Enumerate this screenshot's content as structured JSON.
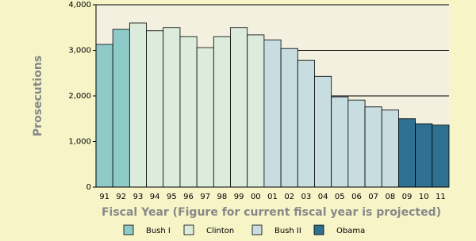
{
  "chart_data": {
    "type": "bar",
    "y_label": "Prosecutions",
    "x_label": "Fiscal Year (Figure for current fiscal year is projected)",
    "categories": [
      "91",
      "92",
      "93",
      "94",
      "95",
      "96",
      "97",
      "98",
      "99",
      "00",
      "01",
      "02",
      "03",
      "04",
      "05",
      "06",
      "07",
      "08",
      "09",
      "10",
      "11"
    ],
    "series": [
      {
        "name": "Bush I",
        "color": "#8ecac8",
        "values": [
          3130,
          3460,
          null,
          null,
          null,
          null,
          null,
          null,
          null,
          null,
          null,
          null,
          null,
          null,
          null,
          null,
          null,
          null,
          null,
          null,
          null
        ]
      },
      {
        "name": "Clinton",
        "color": "#dcecdc",
        "values": [
          null,
          null,
          3600,
          3430,
          3500,
          3300,
          3060,
          3300,
          3500,
          3340,
          null,
          null,
          null,
          null,
          null,
          null,
          null,
          null,
          null,
          null,
          null
        ]
      },
      {
        "name": "Bush II",
        "color": "#c8dde0",
        "values": [
          null,
          null,
          null,
          null,
          null,
          null,
          null,
          null,
          null,
          null,
          3230,
          3040,
          2780,
          2430,
          1980,
          1910,
          1760,
          1690,
          null,
          null,
          null
        ]
      },
      {
        "name": "Obama",
        "color": "#2f6f8f",
        "values": [
          null,
          null,
          null,
          null,
          null,
          null,
          null,
          null,
          null,
          null,
          null,
          null,
          null,
          null,
          null,
          null,
          null,
          null,
          1500,
          1390,
          1360
        ]
      }
    ],
    "ylim": [
      0,
      4000
    ],
    "yticks": [
      0,
      {
        "value": 1000,
        "label": "1,000"
      },
      {
        "value": 2000,
        "label": "2,000"
      },
      {
        "value": 3000,
        "label": "3,000"
      },
      {
        "value": 4000,
        "label": "4,000"
      }
    ],
    "grid": true
  }
}
